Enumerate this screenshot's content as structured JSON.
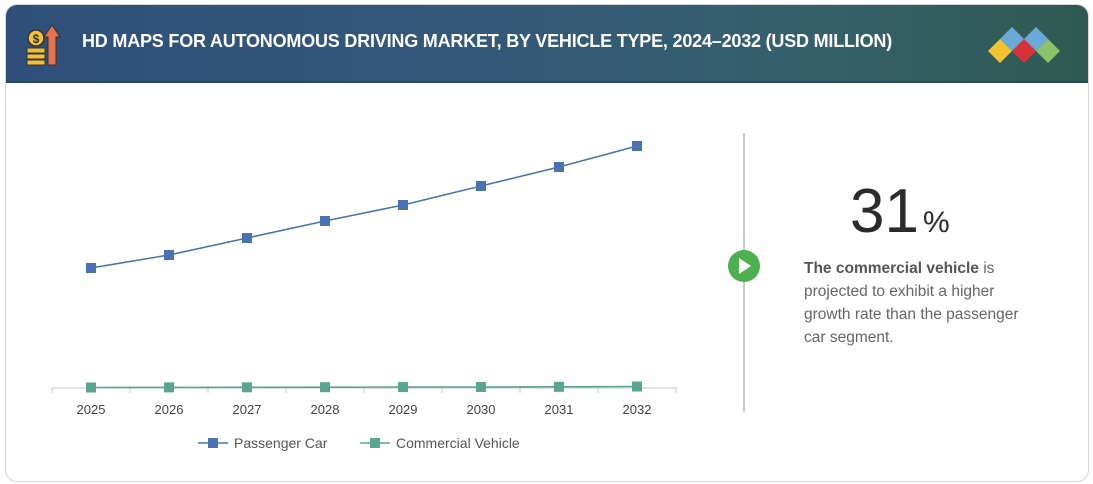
{
  "header": {
    "title": "HD MAPS FOR AUTONOMOUS DRIVING MARKET, BY VEHICLE TYPE, 2024–2032 (USD MILLION)",
    "icon": "money-growth-icon",
    "logo": "diamond-logo"
  },
  "highlight": {
    "value": "31",
    "unit": "%",
    "bold": "The commercial vehicle",
    "text": " is projected to exhibit a higher growth rate than the passenger car segment.",
    "icon": "play-circle-icon",
    "accent": "#4caf50"
  },
  "chart_data": {
    "type": "line",
    "title": "",
    "xlabel": "",
    "ylabel": "",
    "categories": [
      "2025",
      "2026",
      "2027",
      "2028",
      "2029",
      "2030",
      "2031",
      "2032"
    ],
    "ylim": [
      0,
      250
    ],
    "grid": false,
    "legend": "bottom",
    "series": [
      {
        "name": "Passenger Car",
        "color": "#4a72b0",
        "values": [
          120,
          133,
          150,
          167,
          183,
          202,
          221,
          242
        ]
      },
      {
        "name": "Commercial Vehicle",
        "color": "#5aa58f",
        "values": [
          0.5,
          0.6,
          0.7,
          0.8,
          0.9,
          1.0,
          1.2,
          1.5
        ]
      }
    ]
  }
}
